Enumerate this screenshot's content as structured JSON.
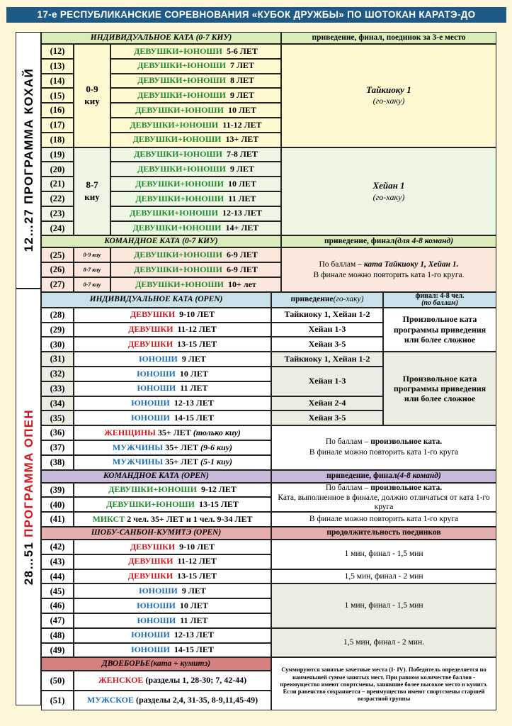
{
  "title": "17-е РЕСПУБЛИКАНСКИЕ СОРЕВНОВАНИЯ «КУБОК ДРУЖБЫ» ПО ШОТОКАН КАРАТЭ-ДО",
  "side1": "12…27 ПРОГРАММА КОХАЙ",
  "side2": {
    "a": "28…51 ",
    "b": "ПРОГРАММА ОПЕН"
  },
  "sec1": {
    "header": "ИНДИВИДУАЛЬНОЕ КАТА (0-7 КИУ)",
    "right": "приведение, финал, поединок за 3-е место"
  },
  "group1": {
    "kyu": "0-9 киу",
    "kata": "Тайкиоку 1",
    "sub": "(го-хаку)"
  },
  "group2": {
    "kyu": "8-7 киу",
    "kata": "Хейан 1",
    "sub": "(го-хаку)"
  },
  "rows1": [
    {
      "n": "(12)",
      "cat": "ДЕВУШКИ+ЮНОШИ",
      "age": "5-6 ЛЕТ"
    },
    {
      "n": "(13)",
      "cat": "ДЕВУШКИ+ЮНОШИ",
      "age": "7 ЛЕТ"
    },
    {
      "n": "(14)",
      "cat": "ДЕВУШКИ+ЮНОШИ",
      "age": "8 ЛЕТ"
    },
    {
      "n": "(15)",
      "cat": "ДЕВУШКИ+ЮНОШИ",
      "age": "9 ЛЕТ"
    },
    {
      "n": "(16)",
      "cat": "ДЕВУШКИ+ЮНОШИ",
      "age": "10 ЛЕТ"
    },
    {
      "n": "(17)",
      "cat": "ДЕВУШКИ+ЮНОШИ",
      "age": "11-12 ЛЕТ"
    },
    {
      "n": "(18)",
      "cat": "ДЕВУШКИ+ЮНОШИ",
      "age": "13+ ЛЕТ"
    },
    {
      "n": "(19)",
      "cat": "ДЕВУШКИ+ЮНОШИ",
      "age": "7-8 ЛЕТ"
    },
    {
      "n": "(20)",
      "cat": "ДЕВУШКИ+ЮНОШИ",
      "age": "9 ЛЕТ"
    },
    {
      "n": "(21)",
      "cat": "ДЕВУШКИ+ЮНОШИ",
      "age": "10 ЛЕТ"
    },
    {
      "n": "(22)",
      "cat": "ДЕВУШКИ+ЮНОШИ",
      "age": "11 ЛЕТ"
    },
    {
      "n": "(23)",
      "cat": "ДЕВУШКИ+ЮНОШИ",
      "age": "12-13 ЛЕТ"
    },
    {
      "n": "(24)",
      "cat": "ДЕВУШКИ+ЮНОШИ",
      "age": "14+ ЛЕТ"
    }
  ],
  "sec2": {
    "header": "КОМАНДНОЕ КАТА (0-7 КИУ)",
    "right_a": "приведение, финал ",
    "right_b": "(для 4-8 команд)",
    "note1_a": "По баллам – ",
    "note1_b": "ката Тайкиоку 1, Хейан 1.",
    "note2": "В финале можно повторить ката 1-го круга."
  },
  "rows2": [
    {
      "n": "(25)",
      "kyu": "0-9 киу",
      "cat": "ДЕВУШКИ+ЮНОШИ",
      "age": "6-9 ЛЕТ"
    },
    {
      "n": "(26)",
      "kyu": "8-7 киу",
      "cat": "ДЕВУШКИ+ЮНОШИ",
      "age": "6-9 ЛЕТ"
    },
    {
      "n": "(27)",
      "kyu": "0-7 киу",
      "cat": "ДЕВУШКИ+ЮНОШИ",
      "age": "10+ лет"
    }
  ],
  "sec3": {
    "header": "ИНДИВИДУАЛЬНОЕ КАТА (OPEN)",
    "mid_a": "приведение ",
    "mid_b": "(го-хаку)",
    "right_a": "финал: 4-8 чел.",
    "right_b": "(по баллам)",
    "free": "Произвольное ката программы приведения или более сложное"
  },
  "rows3": [
    {
      "n": "(28)",
      "cat": "ДЕВУШКИ",
      "age": "9-10 ЛЕТ",
      "kata": "Тайкиоку 1, Хейан 1-2"
    },
    {
      "n": "(29)",
      "cat": "ДЕВУШКИ",
      "age": "11-12 ЛЕТ",
      "kata": "Хейан 1-3"
    },
    {
      "n": "(30)",
      "cat": "ДЕВУШКИ",
      "age": "13-15 ЛЕТ",
      "kata": "Хейан 3-5"
    },
    {
      "n": "(31)",
      "cat": "ЮНОШИ",
      "age": "9 ЛЕТ",
      "kata": "Тайкиоку 1, Хейан 1-2"
    },
    {
      "n": "(32)",
      "cat": "ЮНОШИ",
      "age": "10 ЛЕТ"
    },
    {
      "n": "(33)",
      "cat": "ЮНОШИ",
      "age": "11 ЛЕТ"
    },
    {
      "n": "(34)",
      "cat": "ЮНОШИ",
      "age": "12-13 ЛЕТ",
      "kata": "Хейан 2-4"
    },
    {
      "n": "(35)",
      "cat": "ЮНОШИ",
      "age": "14-15 ЛЕТ",
      "kata": "Хейан 3-5"
    }
  ],
  "kata32": "Хейан 1-3",
  "rows4": [
    {
      "n": "(36)",
      "cat": "ЖЕНЩИНЫ",
      "age": "35+ ЛЕТ",
      "q": "(только киу)"
    },
    {
      "n": "(37)",
      "cat": "МУЖЧИНЫ",
      "age": "35+ ЛЕТ",
      "q": "(9-6 киу)"
    },
    {
      "n": "(38)",
      "cat": "МУЖЧИНЫ",
      "age": "35+ ЛЕТ",
      "q": "(5-1 киу)"
    }
  ],
  "note36": {
    "a": "По баллам – ",
    "b": "произвольное ката.",
    "c": "В финале можно повторить ката 1-го круга"
  },
  "sec4": {
    "header": "КОМАНДНОЕ КАТА (OPEN)",
    "right_a": "приведение, финал ",
    "right_b": "(4-8 команд)",
    "note1_a": "По баллам – ",
    "note1_b": "произвольное ката.",
    "note2": "Ката, выполненное в финале, должно отличаться от ката 1-го круга",
    "note41": "В финале можно повторить ката 1-го круга"
  },
  "rows5": [
    {
      "n": "(39)",
      "cat": "ДЕВУШКИ+ЮНОШИ",
      "age": "9-12 ЛЕТ"
    },
    {
      "n": "(40)",
      "cat": "ДЕВУШКИ+ЮНОШИ",
      "age": "13-15 ЛЕТ"
    }
  ],
  "row41": {
    "n": "(41)",
    "cat": "МИКСТ",
    "rest": "2 чел. 35+ ЛЕТ и 1 чел. 9-34 ЛЕТ"
  },
  "sec5": {
    "header": "ШОБУ-САНБОН-КУМИТЭ (OPEN)",
    "right": "продолжительность поединков"
  },
  "rows6": [
    {
      "n": "(42)",
      "cat": "ДЕВУШКИ",
      "age": "9-10 ЛЕТ"
    },
    {
      "n": "(43)",
      "cat": "ДЕВУШКИ",
      "age": "11-12 ЛЕТ"
    },
    {
      "n": "(44)",
      "cat": "ДЕВУШКИ",
      "age": "13-15 ЛЕТ"
    },
    {
      "n": "(45)",
      "cat": "ЮНОШИ",
      "age": "9 ЛЕТ"
    },
    {
      "n": "(46)",
      "cat": "ЮНОШИ",
      "age": "10 ЛЕТ"
    },
    {
      "n": "(47)",
      "cat": "ЮНОШИ",
      "age": "11 ЛЕТ"
    },
    {
      "n": "(48)",
      "cat": "ЮНОШИ",
      "age": "12-13 ЛЕТ"
    },
    {
      "n": "(49)",
      "cat": "ЮНОШИ",
      "age": "14-15 ЛЕТ"
    }
  ],
  "dur": {
    "a": "1 мин, финал - 1,5 мин",
    "b": "1,5 мин, финал - 2 мин",
    "c": "1 мин, финал - 1,5 мин",
    "d": "1,5 мин, финал - 2 мин."
  },
  "sec6": {
    "header_a": "ДВОЕБОРЬЕ ",
    "header_b": "(ката + кумитэ)",
    "note": "Суммируются занятые зачетные места (I- IV). Победитель определяется по наименьшей сумме занятых мест. При равном количестве баллов - преимущество имеют спортсмены, занявшие более высокое место в кумитэ. Если равенство сохраняется – преимущество имеют спортсмены старшей возрастной группы"
  },
  "rows7": [
    {
      "n": "(50)",
      "cat": "ЖЕНСКОЕ",
      "rest": "(разделы 1, 28-30; 7, 42-44)"
    },
    {
      "n": "(51)",
      "cat": "МУЖСКОЕ",
      "rest": "(разделы 2,4, 31-35, 8-9,11,45-49)"
    }
  ]
}
